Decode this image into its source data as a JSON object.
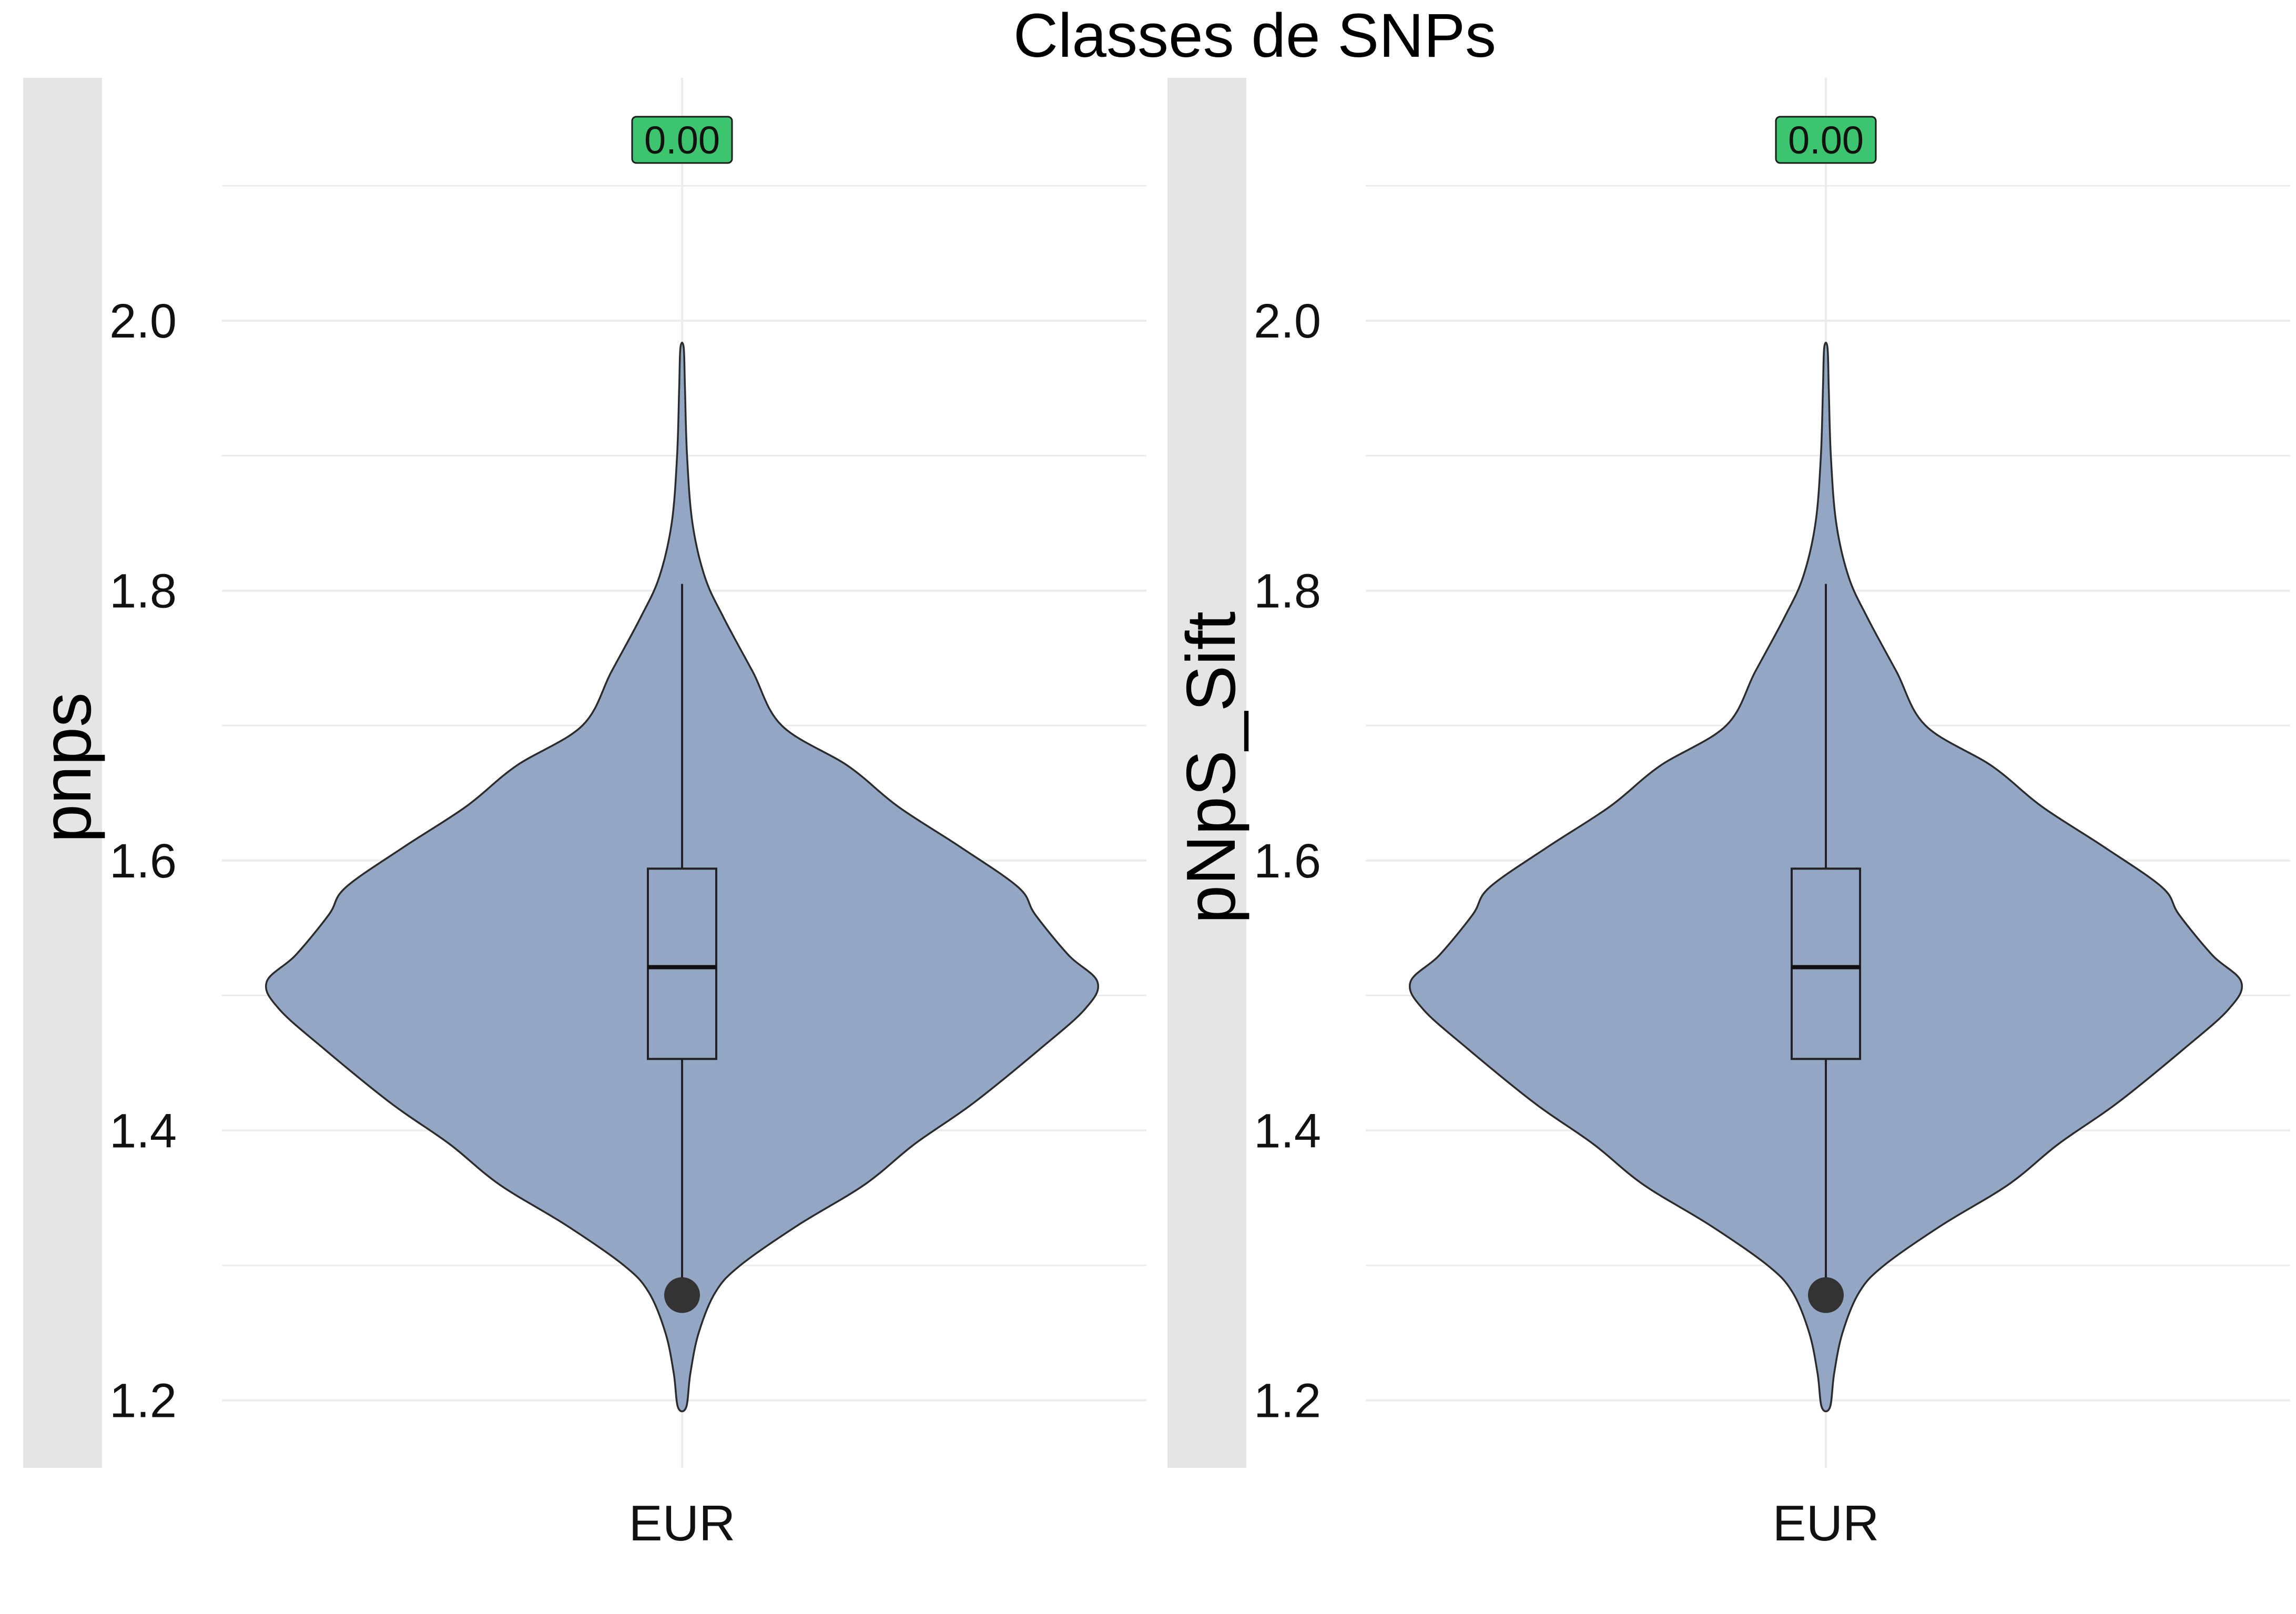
{
  "title": "Classes de SNPs",
  "colors": {
    "violin_fill": "#93a6c3",
    "violin_stroke": "#2b2b2b",
    "outlier": "#333333",
    "badge_fill": "#3cc56e",
    "strip": "#e5e5e5",
    "grid": "#ececec"
  },
  "chart_data": [
    {
      "type": "violin",
      "ylabel": "pnps",
      "xlabel": "",
      "categories": [
        "EUR"
      ],
      "ylim": [
        1.15,
        2.18
      ],
      "yticks": [
        1.2,
        1.4,
        1.6,
        1.8,
        2.0
      ],
      "ytick_labels": [
        "1.2",
        "1.4",
        "1.6",
        "1.8",
        "2.0"
      ],
      "grid": true,
      "annotation": "0.00",
      "box": {
        "min": 1.28,
        "q1": 1.453,
        "median": 1.521,
        "q3": 1.594,
        "max": 1.805
      },
      "outliers": [
        1.278
      ],
      "density": [
        {
          "y": 1.195,
          "w": 0.01
        },
        {
          "y": 1.22,
          "w": 0.02
        },
        {
          "y": 1.25,
          "w": 0.04
        },
        {
          "y": 1.28,
          "w": 0.08
        },
        {
          "y": 1.3,
          "w": 0.14
        },
        {
          "y": 1.33,
          "w": 0.28
        },
        {
          "y": 1.36,
          "w": 0.44
        },
        {
          "y": 1.39,
          "w": 0.56
        },
        {
          "y": 1.42,
          "w": 0.7
        },
        {
          "y": 1.46,
          "w": 0.86
        },
        {
          "y": 1.49,
          "w": 0.97
        },
        {
          "y": 1.51,
          "w": 1.0
        },
        {
          "y": 1.53,
          "w": 0.93
        },
        {
          "y": 1.56,
          "w": 0.85
        },
        {
          "y": 1.58,
          "w": 0.81
        },
        {
          "y": 1.61,
          "w": 0.67
        },
        {
          "y": 1.64,
          "w": 0.52
        },
        {
          "y": 1.67,
          "w": 0.4
        },
        {
          "y": 1.7,
          "w": 0.24
        },
        {
          "y": 1.74,
          "w": 0.17
        },
        {
          "y": 1.78,
          "w": 0.1
        },
        {
          "y": 1.81,
          "w": 0.055
        },
        {
          "y": 1.85,
          "w": 0.025
        },
        {
          "y": 1.9,
          "w": 0.012
        },
        {
          "y": 1.95,
          "w": 0.007
        },
        {
          "y": 1.98,
          "w": 0.004
        }
      ]
    },
    {
      "type": "violin",
      "ylabel": "pNpS_Sift",
      "xlabel": "",
      "categories": [
        "EUR"
      ],
      "ylim": [
        1.15,
        2.18
      ],
      "yticks": [
        1.2,
        1.4,
        1.6,
        1.8,
        2.0
      ],
      "ytick_labels": [
        "1.2",
        "1.4",
        "1.6",
        "1.8",
        "2.0"
      ],
      "grid": true,
      "annotation": "0.00",
      "box": {
        "min": 1.28,
        "q1": 1.453,
        "median": 1.521,
        "q3": 1.594,
        "max": 1.805
      },
      "outliers": [
        1.278
      ],
      "density": [
        {
          "y": 1.195,
          "w": 0.01
        },
        {
          "y": 1.22,
          "w": 0.02
        },
        {
          "y": 1.25,
          "w": 0.04
        },
        {
          "y": 1.28,
          "w": 0.08
        },
        {
          "y": 1.3,
          "w": 0.14
        },
        {
          "y": 1.33,
          "w": 0.28
        },
        {
          "y": 1.36,
          "w": 0.44
        },
        {
          "y": 1.39,
          "w": 0.56
        },
        {
          "y": 1.42,
          "w": 0.7
        },
        {
          "y": 1.46,
          "w": 0.86
        },
        {
          "y": 1.49,
          "w": 0.97
        },
        {
          "y": 1.51,
          "w": 1.0
        },
        {
          "y": 1.53,
          "w": 0.93
        },
        {
          "y": 1.56,
          "w": 0.85
        },
        {
          "y": 1.58,
          "w": 0.81
        },
        {
          "y": 1.61,
          "w": 0.67
        },
        {
          "y": 1.64,
          "w": 0.52
        },
        {
          "y": 1.67,
          "w": 0.4
        },
        {
          "y": 1.7,
          "w": 0.24
        },
        {
          "y": 1.74,
          "w": 0.17
        },
        {
          "y": 1.78,
          "w": 0.1
        },
        {
          "y": 1.81,
          "w": 0.055
        },
        {
          "y": 1.85,
          "w": 0.025
        },
        {
          "y": 1.9,
          "w": 0.012
        },
        {
          "y": 1.95,
          "w": 0.007
        },
        {
          "y": 1.98,
          "w": 0.004
        }
      ]
    }
  ]
}
